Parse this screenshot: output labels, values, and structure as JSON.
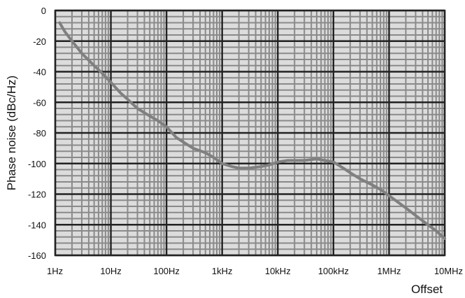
{
  "chart_data": {
    "type": "line",
    "xlabel": "Offset",
    "ylabel": "Phase noise (dBc/Hz)",
    "xscale": "log",
    "xlim": [
      1,
      10000000
    ],
    "ylim": [
      -160,
      0
    ],
    "grid": true,
    "x_ticks": [
      {
        "value": 1,
        "label": "1Hz"
      },
      {
        "value": 10,
        "label": "10Hz"
      },
      {
        "value": 100,
        "label": "100Hz"
      },
      {
        "value": 1000,
        "label": "1kHz"
      },
      {
        "value": 10000,
        "label": "10kHz"
      },
      {
        "value": 100000,
        "label": "100kHz"
      },
      {
        "value": 1000000,
        "label": "1MHz"
      },
      {
        "value": 10000000,
        "label": "10MHz"
      }
    ],
    "y_ticks": [
      {
        "value": 0,
        "label": "0"
      },
      {
        "value": -20,
        "label": "-20"
      },
      {
        "value": -40,
        "label": "-40"
      },
      {
        "value": -60,
        "label": "-60"
      },
      {
        "value": -80,
        "label": "-80"
      },
      {
        "value": -100,
        "label": "-100"
      },
      {
        "value": -120,
        "label": "-120"
      },
      {
        "value": -140,
        "label": "-140"
      },
      {
        "value": -160,
        "label": "-160"
      }
    ],
    "series": [
      {
        "color": "#808080",
        "x": [
          1.2,
          1.5,
          2,
          3,
          5,
          7,
          10,
          15,
          20,
          30,
          50,
          70,
          100,
          150,
          200,
          300,
          500,
          700,
          1000,
          1500,
          2000,
          3000,
          5000,
          7000,
          10000,
          15000,
          20000,
          30000,
          50000,
          70000,
          100000,
          150000,
          200000,
          300000,
          500000,
          700000,
          1000000,
          2000000,
          3000000,
          5000000,
          7000000,
          10000000
        ],
        "y": [
          -8,
          -14,
          -20,
          -28,
          -36,
          -41,
          -47,
          -54,
          -58,
          -64,
          -69,
          -72,
          -76,
          -83,
          -86,
          -90,
          -93,
          -96,
          -100,
          -102,
          -103,
          -103,
          -102,
          -101,
          -99,
          -98,
          -98,
          -98,
          -97,
          -98,
          -99,
          -103,
          -106,
          -110,
          -114,
          -117,
          -121,
          -129,
          -134,
          -140,
          -144,
          -149
        ]
      }
    ]
  },
  "colors": {
    "background": "#ffffff",
    "plot_background": "#dcdcdc",
    "minor_grid": "#8a8a8a",
    "major_grid": "#222222",
    "series": "#808080"
  }
}
